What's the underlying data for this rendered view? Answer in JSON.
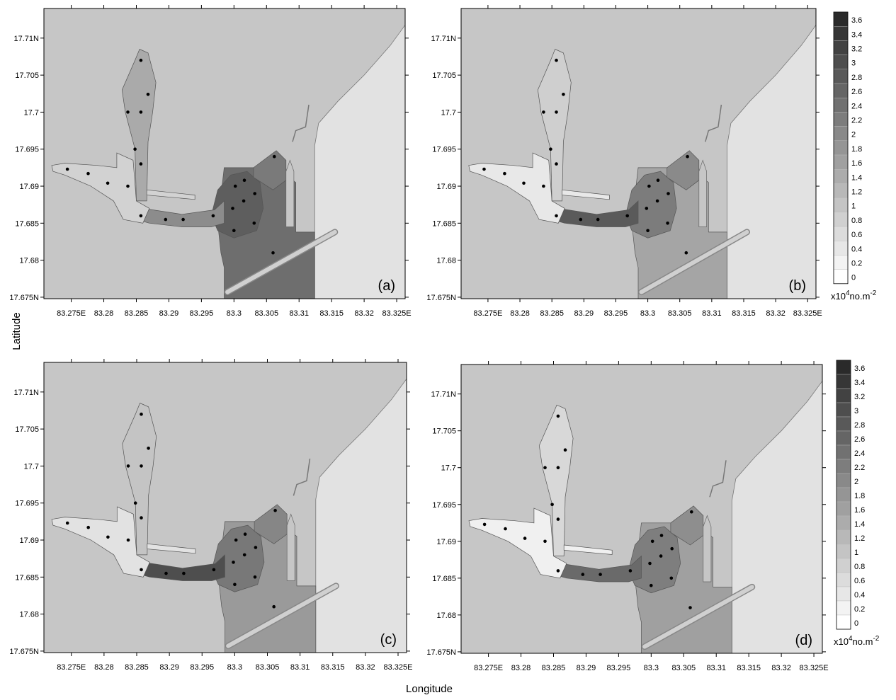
{
  "figure": {
    "x_axis_title": "Longitude",
    "y_axis_title": "Latitude"
  },
  "axes": {
    "x_ticks": [
      "83.275E",
      "83.28",
      "83.285",
      "83.29",
      "83.295",
      "83.3",
      "83.305",
      "83.31",
      "83.315",
      "83.32",
      "83.325E"
    ],
    "y_ticks": [
      "17.71N",
      "17.705",
      "17.7",
      "17.695",
      "17.69",
      "17.685",
      "17.68",
      "17.675N"
    ]
  },
  "panels": [
    {
      "letter": "(a)",
      "port_shades": {
        "north_arm": "#aaaaaa",
        "west_arm": "#d2d2d2",
        "channel": "#8c8c8c",
        "inner_basin": "#5e5e5e",
        "outer_harbour": "#6e6e6e",
        "oil_basin": "#7a7a7a"
      }
    },
    {
      "letter": "(b)",
      "port_shades": {
        "north_arm": "#cfcfcf",
        "west_arm": "#e8e8e8",
        "channel": "#5a5a5a",
        "inner_basin": "#7c7c7c",
        "outer_harbour": "#a5a5a5",
        "oil_basin": "#8a8a8a"
      }
    },
    {
      "letter": "(c)",
      "port_shades": {
        "north_arm": "#c4c4c4",
        "west_arm": "#e2e2e2",
        "channel": "#4e4e4e",
        "inner_basin": "#787878",
        "outer_harbour": "#9a9a9a",
        "oil_basin": "#868686"
      }
    },
    {
      "letter": "(d)",
      "port_shades": {
        "north_arm": "#d8d8d8",
        "west_arm": "#f0f0f0",
        "channel": "#6a6a6a",
        "inner_basin": "#7e7e7e",
        "outer_harbour": "#a0a0a0",
        "oil_basin": "#8e8e8e"
      }
    }
  ],
  "colorbar": {
    "labels": [
      "3.6",
      "3.4",
      "3.2",
      "3",
      "2.8",
      "2.6",
      "2.4",
      "2.2",
      "2",
      "1.8",
      "1.6",
      "1.4",
      "1.2",
      "1",
      "0.8",
      "0.6",
      "0.4",
      "0.2",
      "0"
    ],
    "unit_base": "x10",
    "unit_exp": "4",
    "unit_mid": "no.m",
    "unit_exp2": "-2",
    "dark_color": "#2a2a2a",
    "light_color": "#ffffff"
  },
  "colors": {
    "land": "#c6c6c6",
    "sea": "#e2e2e2",
    "station": "#000000"
  },
  "stations": [
    [
      83.2744,
      17.6923
    ],
    [
      83.2776,
      17.6917
    ],
    [
      83.2806,
      17.6904
    ],
    [
      83.2857,
      17.707
    ],
    [
      83.2868,
      17.7024
    ],
    [
      83.2837,
      17.7
    ],
    [
      83.2857,
      17.7
    ],
    [
      83.2848,
      17.695
    ],
    [
      83.2857,
      17.693
    ],
    [
      83.2837,
      17.69
    ],
    [
      83.2857,
      17.686
    ],
    [
      83.2895,
      17.6855
    ],
    [
      83.2922,
      17.6855
    ],
    [
      83.2968,
      17.686
    ],
    [
      83.2998,
      17.687
    ],
    [
      83.3002,
      17.69
    ],
    [
      83.3016,
      17.6908
    ],
    [
      83.3032,
      17.689
    ],
    [
      83.3015,
      17.688
    ],
    [
      83.3,
      17.684
    ],
    [
      83.3031,
      17.685
    ],
    [
      83.3062,
      17.694
    ],
    [
      83.306,
      17.681
    ]
  ]
}
